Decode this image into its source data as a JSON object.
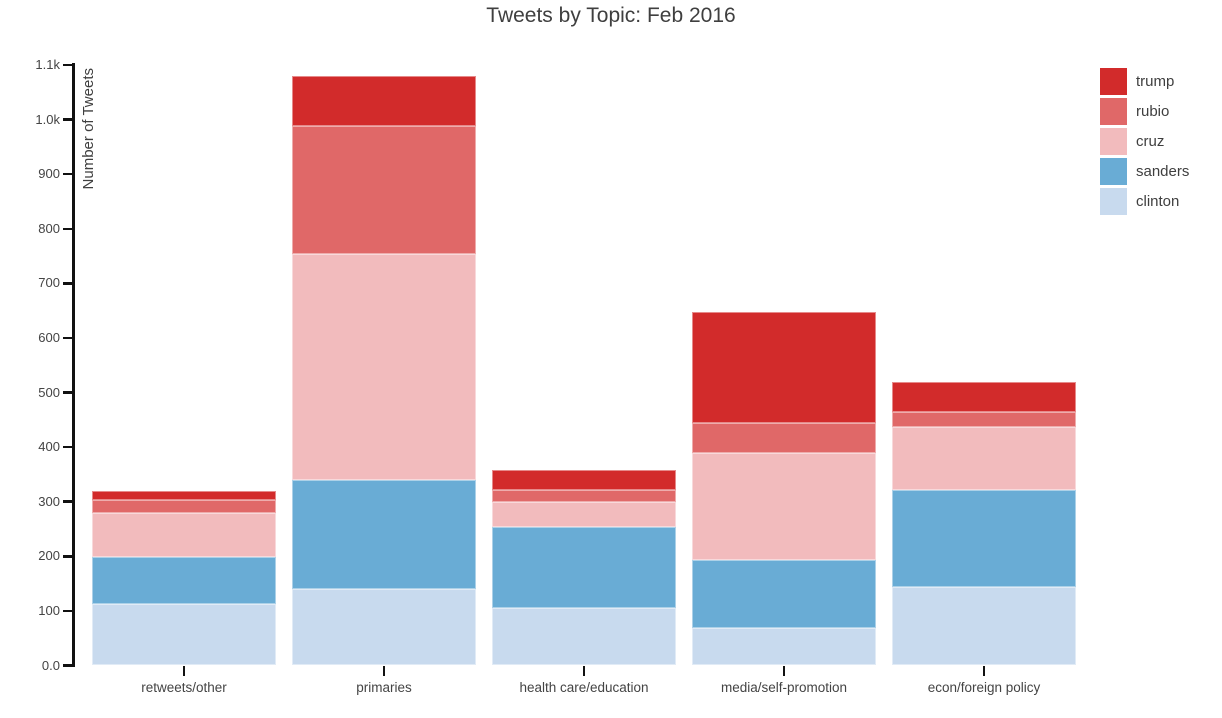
{
  "chart_data": {
    "type": "bar",
    "stacked": true,
    "title": "Tweets by Topic: Feb 2016",
    "xlabel": "",
    "ylabel": "Number of Tweets",
    "categories": [
      "retweets/other",
      "primaries",
      "health care/education",
      "media/self-promotion",
      "econ/foreign policy"
    ],
    "series": [
      {
        "name": "trump",
        "color": "#d22b2b",
        "values": [
          17,
          92,
          37,
          202,
          54
        ]
      },
      {
        "name": "rubio",
        "color": "#e06868",
        "values": [
          23,
          235,
          22,
          55,
          28
        ]
      },
      {
        "name": "cruz",
        "color": "#f2bbbd",
        "values": [
          82,
          413,
          47,
          197,
          115
        ]
      },
      {
        "name": "sanders",
        "color": "#69acd5",
        "values": [
          86,
          200,
          147,
          124,
          179
        ]
      },
      {
        "name": "clinton",
        "color": "#c8daee",
        "values": [
          112,
          140,
          106,
          69,
          143
        ]
      }
    ],
    "stack_order_bottom_to_top": [
      "clinton",
      "sanders",
      "cruz",
      "rubio",
      "trump"
    ],
    "category_totals": [
      320,
      1080,
      359,
      647,
      519
    ],
    "ylim": [
      0,
      1100
    ],
    "ytick_interval": 100,
    "ytick_labels": [
      "0.0",
      "100",
      "200",
      "300",
      "400",
      "500",
      "600",
      "700",
      "800",
      "900",
      "1.0k",
      "1.1k"
    ],
    "legend_position": "top-right",
    "legend_order_top_to_bottom": [
      "trump",
      "rubio",
      "cruz",
      "sanders",
      "clinton"
    ],
    "grid": false,
    "axis_color": "#111111",
    "text_color": "#444444"
  }
}
